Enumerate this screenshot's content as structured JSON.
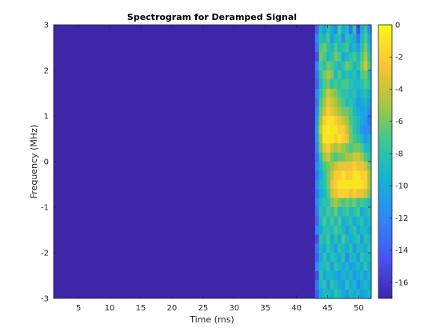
{
  "chart_data": {
    "type": "heatmap",
    "title": "Spectrogram for Deramped Signal",
    "xlabel": "Time (ms)",
    "ylabel": "Frequency (MHz)",
    "xlim": [
      1,
      52
    ],
    "ylim": [
      -3,
      3
    ],
    "clim": [
      -17,
      0
    ],
    "colormap": "parula",
    "colorbar": "right",
    "x_ticks": [
      5,
      10,
      15,
      20,
      25,
      30,
      35,
      40,
      45,
      50
    ],
    "y_ticks": [
      -3,
      -2,
      -1,
      0,
      1,
      2,
      3
    ],
    "colorbar_ticks": [
      0,
      -2,
      -4,
      -6,
      -8,
      -10,
      -12,
      -14,
      -16
    ],
    "floor_value": -17,
    "signal_start_ms": 43,
    "signal_end_ms": 52,
    "time_bins_ms": [
      43.0,
      43.6,
      44.2,
      44.8,
      45.4,
      46.0,
      46.6,
      47.2,
      47.8,
      48.4,
      49.0,
      49.6,
      50.2,
      50.8,
      51.4
    ],
    "freq_bins_mhz": [
      2.9,
      2.7,
      2.5,
      2.3,
      2.1,
      1.9,
      1.7,
      1.5,
      1.3,
      1.1,
      0.9,
      0.7,
      0.5,
      0.3,
      0.1,
      -0.1,
      -0.3,
      -0.5,
      -0.7,
      -0.9,
      -1.1,
      -1.3,
      -1.5,
      -1.7,
      -1.9,
      -2.1,
      -2.3,
      -2.5,
      -2.7,
      -2.9
    ],
    "values_db": [
      [
        -14,
        -9,
        -11,
        -8,
        -10,
        -12,
        -7,
        -10,
        -9,
        -13,
        -8,
        -15,
        -10,
        -8,
        -12
      ],
      [
        -12,
        -8,
        -9,
        -7,
        -11,
        -9,
        -8,
        -12,
        -8,
        -9,
        -10,
        -13,
        -9,
        -7,
        -10
      ],
      [
        -13,
        -7,
        -6,
        -8,
        -9,
        -7,
        -9,
        -8,
        -7,
        -10,
        -9,
        -11,
        -8,
        -6,
        -9
      ],
      [
        -15,
        -6,
        -7,
        -9,
        -8,
        -6,
        -7,
        -10,
        -9,
        -8,
        -7,
        -9,
        -7,
        -5,
        -8
      ],
      [
        -12,
        -7,
        -8,
        -6,
        -7,
        -8,
        -9,
        -8,
        -6,
        -7,
        -9,
        -8,
        -6,
        -4,
        -7
      ],
      [
        -13,
        -8,
        -6,
        -5,
        -6,
        -9,
        -7,
        -9,
        -8,
        -9,
        -8,
        -10,
        -7,
        -6,
        -9
      ],
      [
        -14,
        -9,
        -7,
        -6,
        -8,
        -7,
        -8,
        -7,
        -7,
        -8,
        -9,
        -9,
        -8,
        -7,
        -8
      ],
      [
        -12,
        -8,
        -6,
        -4,
        -5,
        -6,
        -7,
        -8,
        -8,
        -9,
        -8,
        -10,
        -9,
        -8,
        -10
      ],
      [
        -13,
        -7,
        -5,
        -3,
        -4,
        -5,
        -6,
        -7,
        -9,
        -8,
        -9,
        -11,
        -10,
        -9,
        -11
      ],
      [
        -12,
        -6,
        -4,
        -2,
        -3,
        -4,
        -5,
        -6,
        -6,
        -7,
        -9,
        -10,
        -11,
        -10,
        -12
      ],
      [
        -11,
        -5,
        -2,
        -1,
        -1,
        -2,
        -3,
        -4,
        -5,
        -7,
        -8,
        -9,
        -10,
        -11,
        -13
      ],
      [
        -10,
        -4,
        -1,
        -0.5,
        -1,
        -1,
        -2,
        -2,
        -4,
        -6,
        -8,
        -9,
        -11,
        -12,
        -12
      ],
      [
        -11,
        -5,
        -1,
        -1,
        -1,
        -2,
        -1,
        -2,
        -3,
        -6,
        -7,
        -8,
        -9,
        -11,
        -10
      ],
      [
        -12,
        -6,
        -3,
        -2,
        -4,
        -5,
        -4,
        -5,
        -6,
        -7,
        -6,
        -6,
        -7,
        -9,
        -9
      ],
      [
        -13,
        -8,
        -5,
        -4,
        -6,
        -7,
        -6,
        -6,
        -5,
        -5,
        -4,
        -4,
        -5,
        -7,
        -8
      ],
      [
        -12,
        -9,
        -7,
        -6,
        -5,
        -4,
        -3,
        -3,
        -3,
        -3,
        -2,
        -3,
        -3,
        -4,
        -6
      ],
      [
        -13,
        -10,
        -8,
        -6,
        -4,
        -2,
        -2,
        -1,
        -2,
        -2,
        -1,
        -1,
        -2,
        -2,
        -5
      ],
      [
        -12,
        -9,
        -8,
        -6,
        -3,
        -2,
        -1,
        -1,
        -1,
        -1,
        -1,
        -1,
        -1,
        -2,
        -5
      ],
      [
        -13,
        -10,
        -9,
        -7,
        -4,
        -3,
        -2,
        -2,
        -2,
        -3,
        -2,
        -3,
        -3,
        -4,
        -6
      ],
      [
        -12,
        -9,
        -8,
        -8,
        -6,
        -5,
        -6,
        -7,
        -6,
        -7,
        -6,
        -8,
        -7,
        -8,
        -9
      ],
      [
        -13,
        -8,
        -9,
        -7,
        -8,
        -6,
        -9,
        -8,
        -7,
        -9,
        -8,
        -7,
        -10,
        -9,
        -8
      ],
      [
        -14,
        -9,
        -7,
        -9,
        -7,
        -9,
        -7,
        -10,
        -9,
        -8,
        -10,
        -9,
        -8,
        -10,
        -9
      ],
      [
        -12,
        -10,
        -8,
        -8,
        -9,
        -7,
        -8,
        -9,
        -11,
        -9,
        -8,
        -10,
        -9,
        -9,
        -10
      ],
      [
        -15,
        -8,
        -9,
        -7,
        -10,
        -8,
        -10,
        -7,
        -9,
        -10,
        -9,
        -8,
        -11,
        -8,
        -9
      ],
      [
        -13,
        -9,
        -10,
        -8,
        -9,
        -11,
        -8,
        -9,
        -10,
        -8,
        -11,
        -9,
        -9,
        -10,
        -8
      ],
      [
        -14,
        -10,
        -8,
        -10,
        -8,
        -9,
        -10,
        -8,
        -12,
        -9,
        -9,
        -11,
        -8,
        -9,
        -9
      ],
      [
        -12,
        -9,
        -9,
        -8,
        -11,
        -8,
        -9,
        -10,
        -9,
        -11,
        -10,
        -9,
        -10,
        -8,
        -10
      ],
      [
        -15,
        -8,
        -10,
        -9,
        -9,
        -10,
        -11,
        -9,
        -10,
        -9,
        -11,
        -10,
        -9,
        -11,
        -9
      ],
      [
        -13,
        -9,
        -8,
        -11,
        -8,
        -9,
        -10,
        -11,
        -8,
        -10,
        -9,
        -12,
        -10,
        -9,
        -10
      ],
      [
        -14,
        -10,
        -9,
        -9,
        -10,
        -8,
        -9,
        -10,
        -11,
        -9,
        -10,
        -9,
        -11,
        -10,
        -9
      ]
    ]
  }
}
